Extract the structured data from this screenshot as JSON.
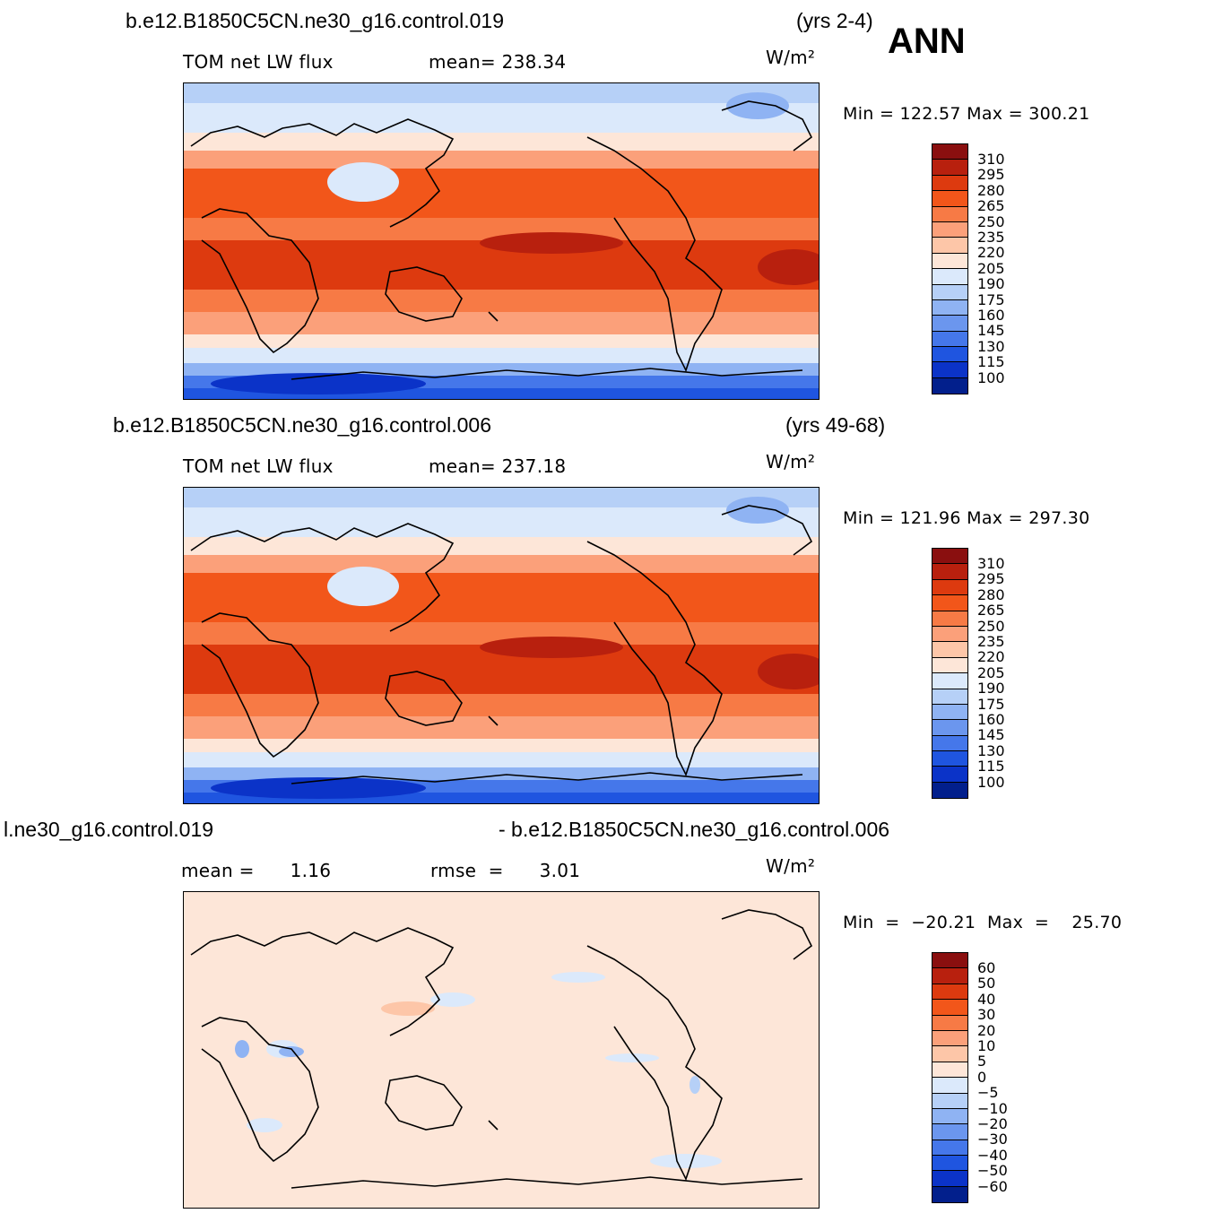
{
  "annotation": "ANN",
  "panels": [
    {
      "case_title": "b.e12.B1850C5CN.ne30_g16.control.019",
      "years": "(yrs 2-4)",
      "variable": "TOM  net  LW  flux",
      "mean_label": "mean=  238.34",
      "units": "W/m²",
      "min_max": "Min  =  122.57  Max  =  300.21",
      "field": "absolute"
    },
    {
      "case_title": "b.e12.B1850C5CN.ne30_g16.control.006",
      "years": "(yrs 49-68)",
      "variable": "TOM  net  LW  flux",
      "mean_label": "mean=  237.18",
      "units": "W/m²",
      "min_max": "Min  =  121.96  Max  =  297.30",
      "field": "absolute"
    },
    {
      "case_title_left": "l.ne30_g16.control.019",
      "case_title_right": "- b.e12.B1850C5CN.ne30_g16.control.006",
      "mean_label": "mean =      1.16",
      "rmse_label": "rmse  =      3.01",
      "units": "W/m²",
      "min_max": "Min  =  −20.21  Max  =    25.70",
      "field": "difference"
    }
  ],
  "colorbar_absolute": {
    "labels": [
      "310",
      "295",
      "280",
      "265",
      "250",
      "235",
      "220",
      "205",
      "190",
      "175",
      "160",
      "145",
      "130",
      "115",
      "100"
    ],
    "colors": [
      "#8a0f0f",
      "#b8200e",
      "#dd3a0f",
      "#f2561a",
      "#f77a45",
      "#fba07a",
      "#fdc6a8",
      "#fde6d8",
      "#dbe9fb",
      "#b6d0f7",
      "#8fb3f3",
      "#6b96ee",
      "#4577ea",
      "#1f55e0",
      "#0b33c8",
      "#021f8c"
    ]
  },
  "colorbar_difference": {
    "labels": [
      "60",
      "50",
      "40",
      "30",
      "20",
      "10",
      "5",
      "0",
      "−5",
      "−10",
      "−20",
      "−30",
      "−40",
      "−50",
      "−60"
    ],
    "colors": [
      "#8a0f0f",
      "#b8200e",
      "#dd3a0f",
      "#f2561a",
      "#f77a45",
      "#fba07a",
      "#fdc6a8",
      "#fde6d8",
      "#dbe9fb",
      "#b6d0f7",
      "#8fb3f3",
      "#6b96ee",
      "#4577ea",
      "#1f55e0",
      "#0b33c8",
      "#021f8c"
    ]
  }
}
